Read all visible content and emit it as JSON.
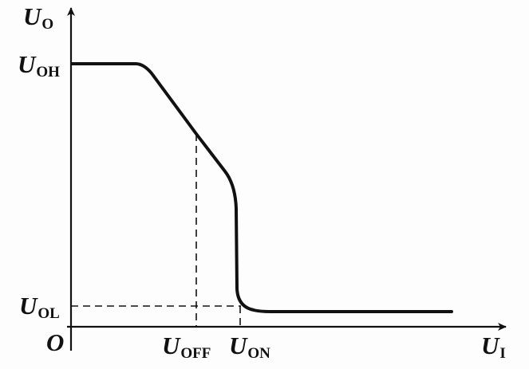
{
  "figure": {
    "y_axis": {
      "symbol": "U",
      "subscript": "O"
    },
    "x_axis": {
      "symbol": "U",
      "subscript": "I"
    },
    "origin": "O",
    "level_labels": {
      "high": {
        "symbol": "U",
        "subscript": "OH"
      },
      "low": {
        "symbol": "U",
        "subscript": "OL"
      }
    },
    "threshold_labels": {
      "off": {
        "symbol": "U",
        "subscript": "OFF"
      },
      "on": {
        "symbol": "U",
        "subscript": "ON"
      }
    },
    "colors": {
      "ink": "#111111",
      "background": "#fdfdfd"
    }
  }
}
